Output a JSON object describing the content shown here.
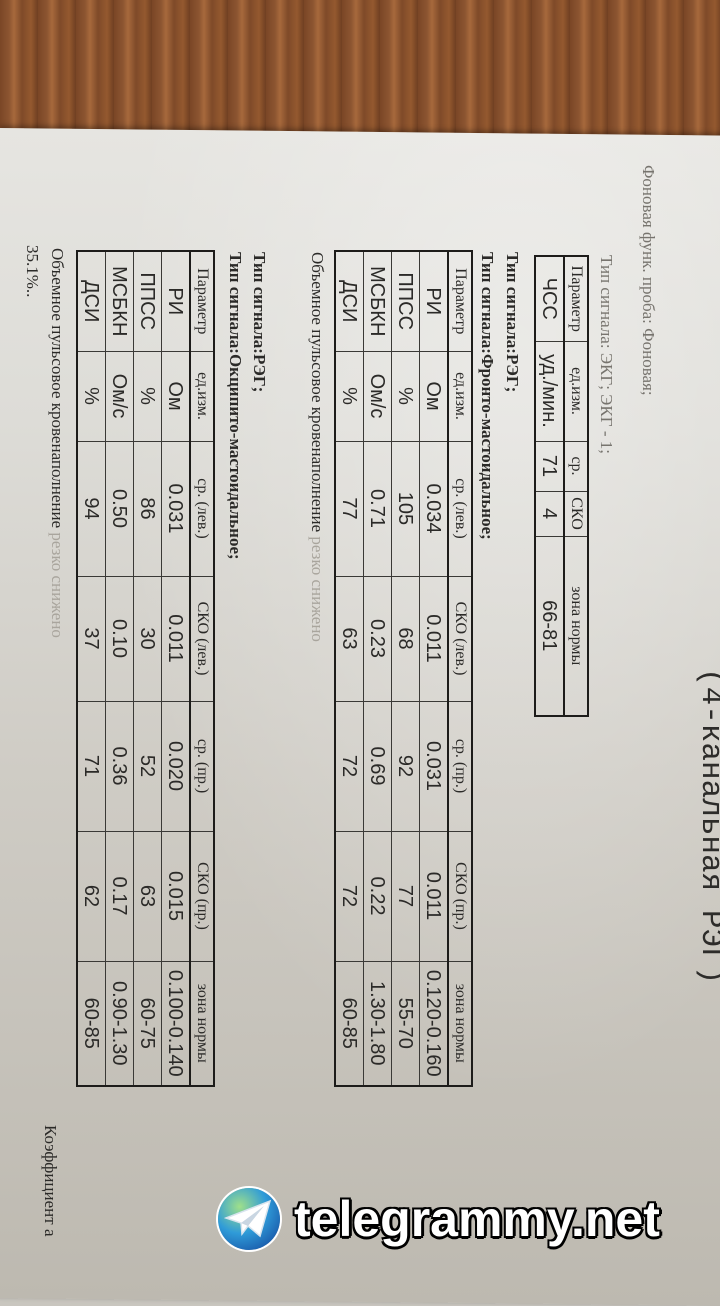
{
  "document": {
    "title": "(4-канальная РЭГ)",
    "test_line": "Фоновая функ. проба: Фоновая;",
    "ecg_signal": "Тип сигнала: ЭКГ; ЭКГ - 1;",
    "ecg_table": {
      "headers": [
        "Параметр",
        "ед.изм.",
        "ср.",
        "СКО",
        "зона нормы"
      ],
      "rows": [
        [
          "ЧСС",
          "уд./мин.",
          "71",
          "4",
          "66-81"
        ]
      ]
    },
    "reg_signal_1": "Тип сигнала:РЭГ;",
    "fronto_signal": "Тип сигнала:Фронто-мастоидальное;",
    "fronto_table": {
      "headers": [
        "Параметр",
        "ед.изм.",
        "ср. (лев.)",
        "СКО (лев.)",
        "ср. (пр.)",
        "СКО (пр.)",
        "зона нормы"
      ],
      "rows": [
        [
          "РИ",
          "Ом",
          "0.034",
          "0.011",
          "0.031",
          "0.011",
          "0.120-0.160"
        ],
        [
          "ППСС",
          "%",
          "105",
          "68",
          "92",
          "77",
          "55-70"
        ],
        [
          "МСБКН",
          "Ом/с",
          "0.71",
          "0.23",
          "0.69",
          "0.22",
          "1.30-1.80"
        ],
        [
          "ДСИ",
          "%",
          "77",
          "63",
          "72",
          "72",
          "60-85"
        ]
      ]
    },
    "fronto_conclusion": "Объемное пульсовое кровенаполнение",
    "fronto_conclusion_faded": "резко снижено",
    "reg_signal_2": "Тип сигнала:РЭГ;",
    "occipito_signal": "Тип сигнала:Окципито-мастоидальное;",
    "occipito_table": {
      "headers": [
        "Параметр",
        "ед.изм.",
        "ср. (лев.)",
        "СКО (лев.)",
        "ср. (пр.)",
        "СКО (пр.)",
        "зона нормы"
      ],
      "rows": [
        [
          "РИ",
          "Ом",
          "0.031",
          "0.011",
          "0.020",
          "0.015",
          "0.100-0.140"
        ],
        [
          "ППСС",
          "%",
          "86",
          "30",
          "52",
          "63",
          "60-75"
        ],
        [
          "МСБКН",
          "Ом/с",
          "0.50",
          "0.10",
          "0.36",
          "0.17",
          "0.90-1.30"
        ],
        [
          "ДСИ",
          "%",
          "94",
          "37",
          "71",
          "62",
          "60-85"
        ]
      ]
    },
    "occipito_conclusion": "Объемное пульсовое кровенаполнение",
    "occipito_conclusion_faded": "резко снижено",
    "occipito_percent": "35.1%..",
    "coefficient_label": "Коэффициент а"
  },
  "watermark": {
    "text": "telegrammy.net",
    "icon": "telegram-globe-icon"
  }
}
